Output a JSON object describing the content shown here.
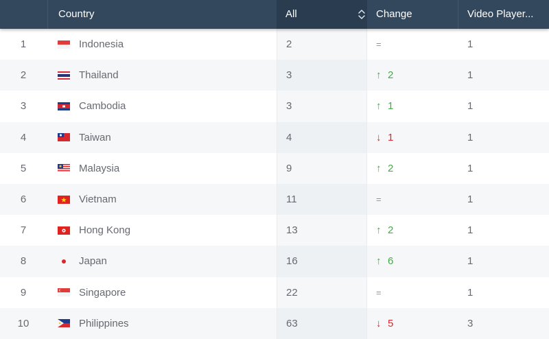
{
  "header": {
    "rank": "",
    "country": "Country",
    "all": "All",
    "change": "Change",
    "video": "Video Player..."
  },
  "rows": [
    {
      "rank": "1",
      "country": "Indonesia",
      "all": "2",
      "change_dir": "same",
      "change": "=",
      "video": "1",
      "flag": "indonesia-flag-icon"
    },
    {
      "rank": "2",
      "country": "Thailand",
      "all": "3",
      "change_dir": "up",
      "change": "2",
      "video": "1",
      "flag": "thailand-flag-icon"
    },
    {
      "rank": "3",
      "country": "Cambodia",
      "all": "3",
      "change_dir": "up",
      "change": "1",
      "video": "1",
      "flag": "cambodia-flag-icon"
    },
    {
      "rank": "4",
      "country": "Taiwan",
      "all": "4",
      "change_dir": "down",
      "change": "1",
      "video": "1",
      "flag": "taiwan-flag-icon"
    },
    {
      "rank": "5",
      "country": "Malaysia",
      "all": "9",
      "change_dir": "up",
      "change": "2",
      "video": "1",
      "flag": "malaysia-flag-icon"
    },
    {
      "rank": "6",
      "country": "Vietnam",
      "all": "11",
      "change_dir": "same",
      "change": "=",
      "video": "1",
      "flag": "vietnam-flag-icon"
    },
    {
      "rank": "7",
      "country": "Hong Kong",
      "all": "13",
      "change_dir": "up",
      "change": "2",
      "video": "1",
      "flag": "hong-kong-flag-icon"
    },
    {
      "rank": "8",
      "country": "Japan",
      "all": "16",
      "change_dir": "up",
      "change": "6",
      "video": "1",
      "flag": "japan-flag-icon"
    },
    {
      "rank": "9",
      "country": "Singapore",
      "all": "22",
      "change_dir": "same",
      "change": "=",
      "video": "1",
      "flag": "singapore-flag-icon"
    },
    {
      "rank": "10",
      "country": "Philippines",
      "all": "63",
      "change_dir": "down",
      "change": "5",
      "video": "3",
      "flag": "philippines-flag-icon"
    }
  ],
  "colors": {
    "header_bg": "#33475d",
    "header_sorted_bg": "#2a3c50",
    "up": "#45a849",
    "down": "#d8282f"
  }
}
